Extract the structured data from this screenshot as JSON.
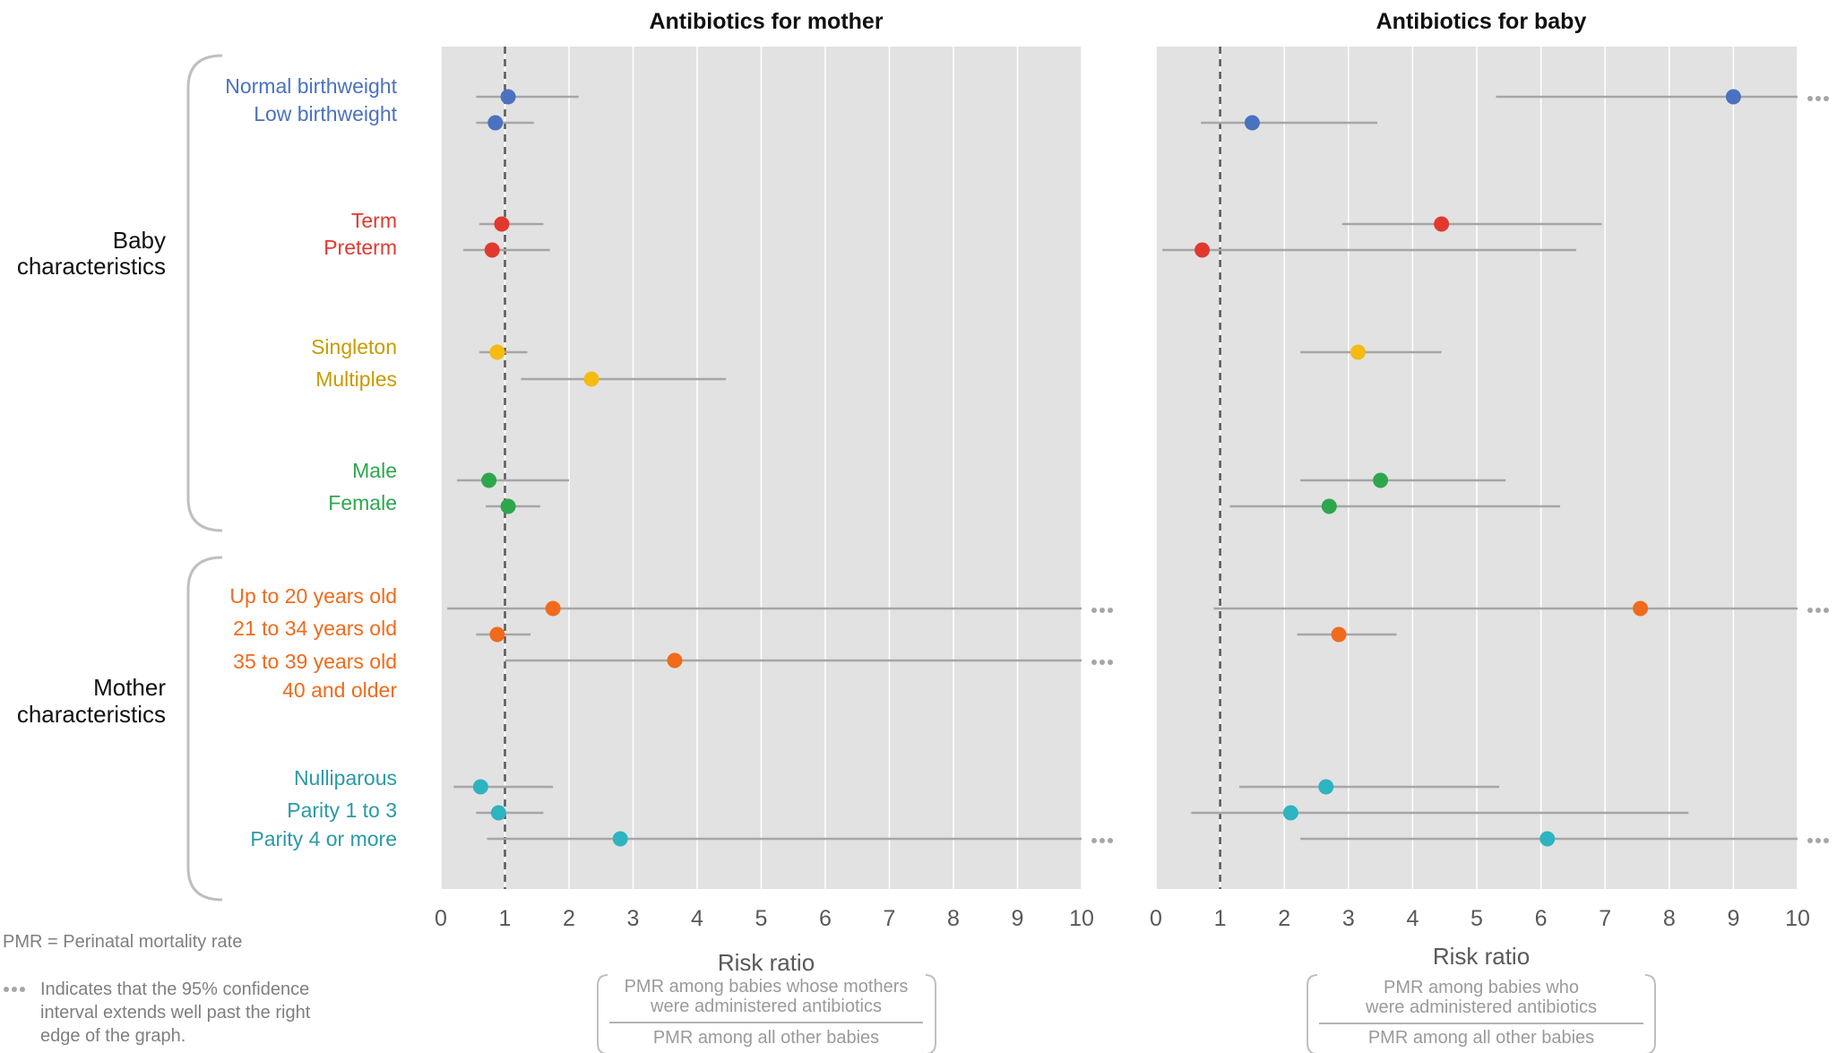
{
  "chart_data": [
    {
      "type": "scatter",
      "title": "Antibiotics for mother",
      "xlabel": "Risk ratio",
      "xlim": [
        0,
        10
      ],
      "xticks": [
        "0",
        "1",
        "2",
        "3",
        "4",
        "5",
        "6",
        "7",
        "8",
        "9",
        "10"
      ],
      "reference_line": 1,
      "fraction": {
        "numerator_line1": "PMR among babies whose mothers",
        "numerator_line2": "were administered antibiotics",
        "denominator": "PMR among all other babies"
      },
      "points": [
        {
          "label": "Normal birthweight",
          "value": 1.05,
          "low": 0.55,
          "high": 2.15,
          "extends": false
        },
        {
          "label": "Low birthweight",
          "value": 0.85,
          "low": 0.55,
          "high": 1.45,
          "extends": false
        },
        {
          "label": "Term",
          "value": 0.95,
          "low": 0.6,
          "high": 1.6,
          "extends": false
        },
        {
          "label": "Preterm",
          "value": 0.8,
          "low": 0.35,
          "high": 1.7,
          "extends": false
        },
        {
          "label": "Singleton",
          "value": 0.88,
          "low": 0.6,
          "high": 1.35,
          "extends": false
        },
        {
          "label": "Multiples",
          "value": 2.35,
          "low": 1.25,
          "high": 4.45,
          "extends": false
        },
        {
          "label": "Male",
          "value": 0.75,
          "low": 0.25,
          "high": 2.0,
          "extends": false
        },
        {
          "label": "Female",
          "value": 1.05,
          "low": 0.7,
          "high": 1.55,
          "extends": false
        },
        {
          "label": "Up to 20 years old",
          "value": 1.75,
          "low": 0.1,
          "high": 10,
          "extends": true
        },
        {
          "label": "21 to 34 years old",
          "value": 0.88,
          "low": 0.55,
          "high": 1.4,
          "extends": false
        },
        {
          "label": "35 to 39 years old",
          "value": 3.65,
          "low": 1.0,
          "high": 10,
          "extends": true
        },
        {
          "label": "40 and older",
          "value": null
        },
        {
          "label": "Nulliparous",
          "value": 0.62,
          "low": 0.2,
          "high": 1.75,
          "extends": false
        },
        {
          "label": "Parity 1 to 3",
          "value": 0.9,
          "low": 0.55,
          "high": 1.6,
          "extends": false
        },
        {
          "label": "Parity 4 or more",
          "value": 2.8,
          "low": 0.72,
          "high": 10,
          "extends": true
        }
      ]
    },
    {
      "type": "scatter",
      "title": "Antibiotics for baby",
      "xlabel": "Risk ratio",
      "xlim": [
        0,
        10
      ],
      "xticks": [
        "0",
        "1",
        "2",
        "3",
        "4",
        "5",
        "6",
        "7",
        "8",
        "9",
        "10"
      ],
      "reference_line": 1,
      "fraction": {
        "numerator_line1": "PMR among babies who",
        "numerator_line2": "were administered antibiotics",
        "denominator": "PMR among all other babies"
      },
      "points": [
        {
          "label": "Normal birthweight",
          "value": 9.0,
          "low": 5.3,
          "high": 10,
          "extends": true
        },
        {
          "label": "Low birthweight",
          "value": 1.5,
          "low": 0.7,
          "high": 3.45,
          "extends": false
        },
        {
          "label": "Term",
          "value": 4.45,
          "low": 2.9,
          "high": 6.95,
          "extends": false
        },
        {
          "label": "Preterm",
          "value": 0.72,
          "low": 0.1,
          "high": 6.55,
          "extends": false
        },
        {
          "label": "Singleton",
          "value": 3.15,
          "low": 2.25,
          "high": 4.45,
          "extends": false
        },
        {
          "label": "Multiples",
          "value": null
        },
        {
          "label": "Male",
          "value": 3.5,
          "low": 2.25,
          "high": 5.45,
          "extends": false
        },
        {
          "label": "Female",
          "value": 2.7,
          "low": 1.15,
          "high": 6.3,
          "extends": false
        },
        {
          "label": "Up to 20 years old",
          "value": 7.55,
          "low": 0.9,
          "high": 10,
          "extends": true
        },
        {
          "label": "21 to 34 years old",
          "value": 2.85,
          "low": 2.2,
          "high": 3.75,
          "extends": false
        },
        {
          "label": "35 to 39 years old",
          "value": null
        },
        {
          "label": "40 and older",
          "value": null
        },
        {
          "label": "Nulliparous",
          "value": 2.65,
          "low": 1.3,
          "high": 5.35,
          "extends": false
        },
        {
          "label": "Parity 1 to 3",
          "value": 2.1,
          "low": 0.55,
          "high": 8.3,
          "extends": false
        },
        {
          "label": "Parity 4 or more",
          "value": 6.1,
          "low": 2.25,
          "high": 10,
          "extends": true
        }
      ]
    }
  ],
  "rows": [
    {
      "label": "Normal birthweight",
      "group": "birthweight"
    },
    {
      "label": "Low birthweight",
      "group": "birthweight"
    },
    {
      "label": "Term",
      "group": "term"
    },
    {
      "label": "Preterm",
      "group": "term"
    },
    {
      "label": "Singleton",
      "group": "plurality"
    },
    {
      "label": "Multiples",
      "group": "plurality"
    },
    {
      "label": "Male",
      "group": "sex"
    },
    {
      "label": "Female",
      "group": "sex"
    },
    {
      "label": "Up to 20 years old",
      "group": "age"
    },
    {
      "label": "21 to 34 years old",
      "group": "age"
    },
    {
      "label": "35 to 39 years old",
      "group": "age"
    },
    {
      "label": "40 and older",
      "group": "age"
    },
    {
      "label": "Nulliparous",
      "group": "parity"
    },
    {
      "label": "Parity 1 to 3",
      "group": "parity"
    },
    {
      "label": "Parity 4 or more",
      "group": "parity"
    }
  ],
  "colors": {
    "birthweight": "#4a72c0",
    "term": "#e2392f",
    "plurality": "#f5bb10",
    "plurality_text": "#c99a00",
    "sex": "#2ea64d",
    "age": "#f26a1b",
    "parity": "#2db4c0",
    "parity_text": "#2a9aa5",
    "panel_bg": "#e2e2e2",
    "ci_line": "#a6a6a6",
    "brace": "#bfbfbf"
  },
  "groups": {
    "baby_line1": "Baby",
    "baby_line2": "characteristics",
    "mother_line1": "Mother",
    "mother_line2": "characteristics"
  },
  "notes": {
    "pmr": "PMR = Perinatal mortality rate",
    "dots_line1": "Indicates that the 95% confidence",
    "dots_line2": "interval extends well past the right",
    "dots_line3": "edge of the graph."
  }
}
